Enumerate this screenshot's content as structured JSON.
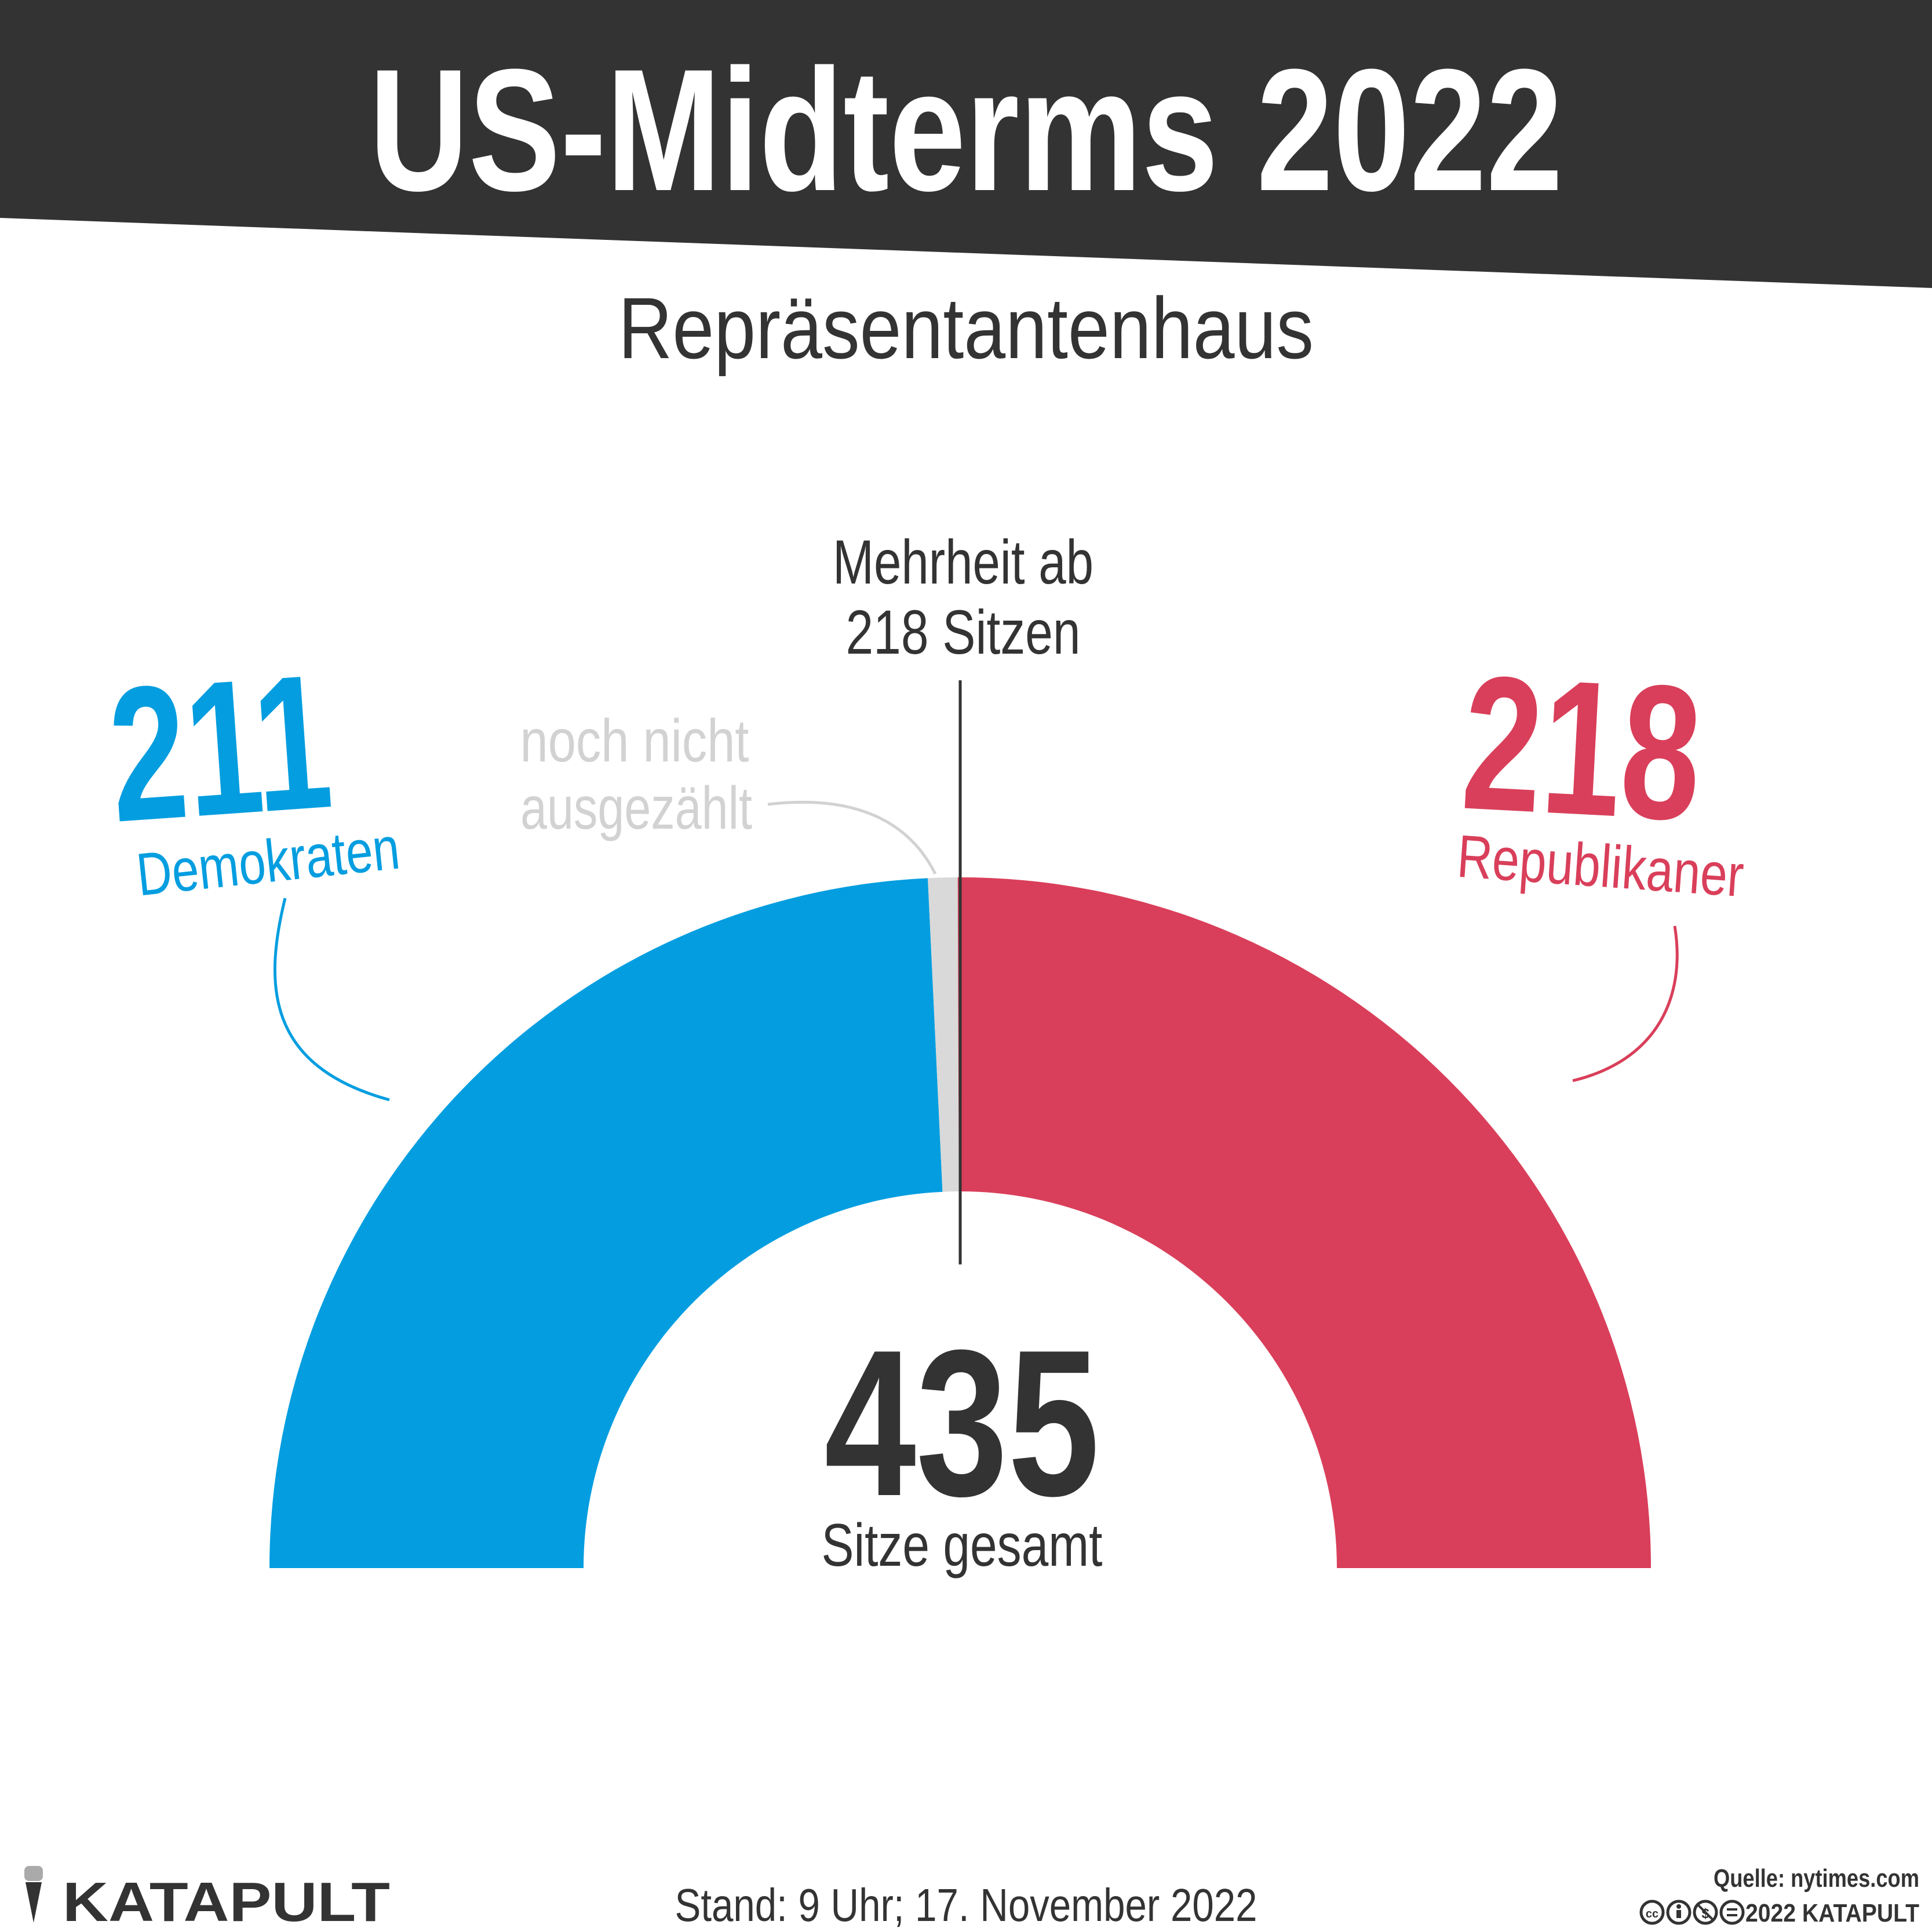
{
  "header": {
    "title": "US-Midterms 2022",
    "subtitle": "Repräsentantenhaus"
  },
  "chart_data": {
    "type": "pie",
    "shape": "semicircle",
    "total": 435,
    "total_label": "Sitze gesamt",
    "majority": 218,
    "majority_label_line1": "Mehrheit ab",
    "majority_label_line2": "218 Sitzen",
    "series": [
      {
        "name": "Demokraten",
        "value": 211,
        "color": "#049ee0"
      },
      {
        "name": "noch nicht ausgezählt",
        "value": 6,
        "color": "#d9d9d9"
      },
      {
        "name": "Republikaner",
        "value": 218,
        "color": "#d93f5a"
      }
    ],
    "labels": {
      "dem_value": "211",
      "dem_name": "Demokraten",
      "rep_value": "218",
      "rep_name": "Republikaner",
      "open_line1": "noch nicht",
      "open_line2": "ausgezählt",
      "total_value": "435"
    }
  },
  "footer": {
    "logo": "KATAPULT",
    "date": "Stand: 9 Uhr; 17. November 2022",
    "source": "Quelle: nytimes.com",
    "copyright": "2022 KATAPULT"
  },
  "colors": {
    "banner": "#333333",
    "text": "#333333",
    "dem": "#049ee0",
    "rep": "#d93f5a",
    "open": "#d9d9d9",
    "open_text": "#d2d2d2"
  }
}
